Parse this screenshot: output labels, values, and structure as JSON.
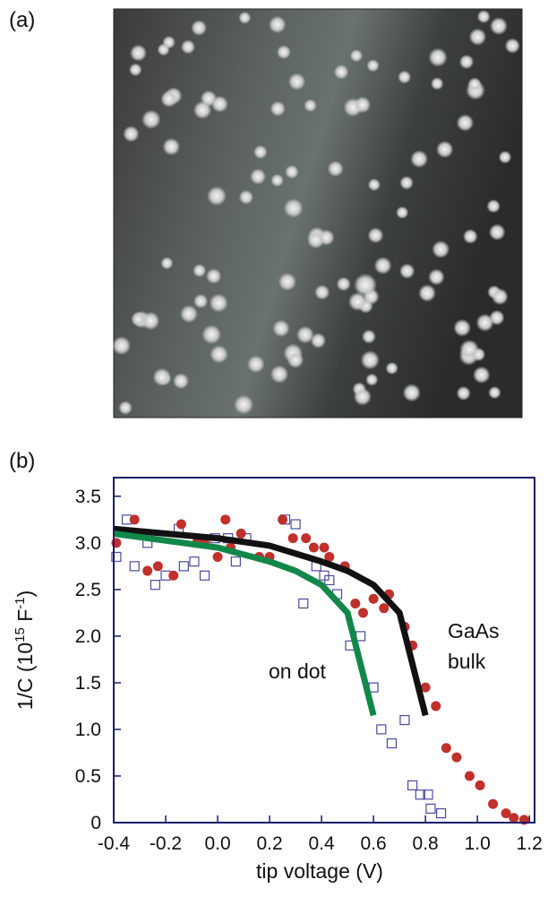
{
  "panel_a_label": "(a)",
  "panel_b_label": "(b)",
  "chart_data": {
    "type": "scatter",
    "xlabel": "tip voltage (V)",
    "ylabel": [
      "1/C (10",
      "15",
      " F",
      "-1",
      ")"
    ],
    "xlim": [
      -0.4,
      1.22
    ],
    "ylim": [
      0,
      3.7
    ],
    "xticks": [
      -0.4,
      -0.2,
      {
        "value": 0,
        "label": "0.0"
      },
      0.2,
      0.4,
      0.6,
      0.8,
      {
        "value": 1,
        "label": "1.0"
      },
      1.2
    ],
    "yticks": [
      0,
      0.5,
      {
        "value": 1,
        "label": "1.0"
      },
      1.5,
      {
        "value": 2,
        "label": "2.0"
      },
      2.5,
      {
        "value": 3,
        "label": "3.0"
      },
      3.5
    ],
    "annotations": [
      "GaAs",
      "bulk",
      "on dot"
    ],
    "series": [
      {
        "type": "scatter",
        "marker": "square",
        "color": "#4a4aa0",
        "x": [
          -0.39,
          -0.35,
          -0.32,
          -0.27,
          -0.24,
          -0.2,
          -0.15,
          -0.13,
          -0.09,
          -0.05,
          -0.01,
          0.04,
          0.07,
          0.11,
          0.26,
          0.3,
          0.33,
          0.38,
          0.41,
          0.43,
          0.46,
          0.51,
          0.55,
          0.6,
          0.63,
          0.67,
          0.72,
          0.75,
          0.78,
          0.81,
          0.82,
          0.86
        ],
        "values": [
          2.85,
          3.25,
          2.75,
          3.0,
          2.55,
          2.65,
          3.15,
          2.75,
          2.8,
          2.65,
          3.05,
          3.05,
          2.8,
          3.05,
          3.25,
          3.2,
          2.35,
          2.75,
          2.65,
          2.6,
          2.45,
          1.9,
          2.0,
          1.45,
          1.0,
          0.85,
          1.1,
          0.4,
          0.3,
          0.3,
          0.15,
          0.1
        ]
      },
      {
        "type": "scatter",
        "marker": "circle",
        "color": "#c0302c",
        "x": [
          -0.39,
          -0.35,
          -0.32,
          -0.27,
          -0.23,
          -0.17,
          -0.14,
          -0.08,
          -0.05,
          0.0,
          0.03,
          0.05,
          0.09,
          0.16,
          0.2,
          0.25,
          0.29,
          0.34,
          0.37,
          0.41,
          0.43,
          0.49,
          0.53,
          0.56,
          0.6,
          0.64,
          0.66,
          0.72,
          0.75,
          0.8,
          0.84,
          0.88,
          0.92,
          0.97,
          1.01,
          1.06,
          1.11,
          1.14,
          1.18
        ],
        "values": [
          3.0,
          3.1,
          3.25,
          2.7,
          2.75,
          2.65,
          3.2,
          3.0,
          3.0,
          2.85,
          3.25,
          2.95,
          3.1,
          2.85,
          2.85,
          3.25,
          3.05,
          3.05,
          2.95,
          2.95,
          2.85,
          2.75,
          2.35,
          2.25,
          2.4,
          2.3,
          2.45,
          2.1,
          1.9,
          1.45,
          1.25,
          0.8,
          0.7,
          0.5,
          0.4,
          0.2,
          0.1,
          0.05,
          0.03
        ]
      },
      {
        "type": "line",
        "color": "#111111",
        "x": [
          -0.4,
          0.0,
          0.2,
          0.4,
          0.5,
          0.6,
          0.7,
          0.8
        ],
        "values": [
          3.15,
          3.05,
          2.97,
          2.8,
          2.7,
          2.55,
          2.25,
          1.15
        ]
      },
      {
        "type": "line",
        "color": "#12874a",
        "x": [
          -0.4,
          0.0,
          0.2,
          0.3,
          0.4,
          0.5,
          0.6
        ],
        "values": [
          3.1,
          2.95,
          2.8,
          2.7,
          2.55,
          2.25,
          1.15
        ]
      }
    ]
  }
}
